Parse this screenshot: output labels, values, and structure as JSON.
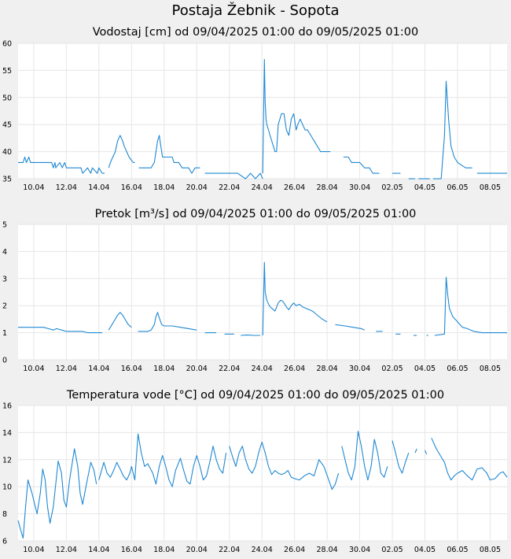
{
  "page_title": "Postaja Žebnik - Sopota",
  "colors": {
    "line": "#1e88d2",
    "grid": "#e6e6e6",
    "plot_bg": "#ffffff",
    "page_bg": "#f0f0f0"
  },
  "chart_data": [
    {
      "type": "line",
      "title": "Vodostaj [cm] od 09/04/2025 01:00 do 09/05/2025 01:00",
      "xlabel": "",
      "ylabel": "",
      "ylim": [
        35,
        60
      ],
      "yticks": [
        35,
        40,
        45,
        50,
        55,
        60
      ],
      "xlim": [
        9.04,
        39.04
      ],
      "xticks": [
        10,
        12,
        14,
        16,
        18,
        20,
        22,
        24,
        26,
        28,
        30,
        32,
        34,
        36,
        38
      ],
      "xtick_labels": [
        "10.04",
        "12.04",
        "14.04",
        "16.04",
        "18.04",
        "20.04",
        "22.04",
        "24.04",
        "26.04",
        "28.04",
        "30.04",
        "02.05",
        "04.05",
        "06.05",
        "08.05"
      ],
      "grid": true,
      "series": [
        {
          "x": [
            9.04,
            9.35,
            9.45,
            9.55,
            9.7,
            9.8,
            9.95,
            10.3,
            10.6,
            10.8,
            11.1,
            11.2,
            11.3,
            11.35,
            11.6,
            11.75,
            11.9,
            12.0,
            12.2,
            12.5,
            12.9,
            13.0,
            13.3,
            13.5,
            13.6,
            13.9,
            14.0,
            14.2,
            14.35
          ],
          "y": [
            38,
            38,
            39,
            38,
            39,
            38,
            38,
            38,
            38,
            38,
            38,
            37,
            38,
            37,
            38,
            37,
            38,
            37,
            37,
            37,
            37,
            36,
            37,
            36,
            37,
            36,
            37,
            36,
            36
          ]
        },
        {
          "x": [
            14.6,
            14.7,
            14.85,
            15.0,
            15.15,
            15.3,
            15.45,
            15.55,
            15.7,
            15.85,
            16.1,
            16.2
          ],
          "y": [
            37,
            38,
            39,
            40,
            42,
            43,
            42,
            41,
            40,
            39,
            38,
            38
          ]
        },
        {
          "x": [
            16.45,
            16.8,
            17.2,
            17.4,
            17.5,
            17.6,
            17.7,
            17.8,
            17.9,
            18.1,
            18.5,
            18.6,
            18.9,
            19.1,
            19.3,
            19.5,
            19.7,
            19.9,
            20.2
          ],
          "y": [
            37,
            37,
            37,
            38,
            40,
            42,
            43,
            41,
            39,
            39,
            39,
            38,
            38,
            37,
            37,
            37,
            36,
            37,
            37
          ]
        },
        {
          "x": [
            20.5,
            21.5,
            22.5,
            23.0,
            23.3,
            23.6,
            23.9,
            24.05
          ],
          "y": [
            36,
            36,
            36,
            35,
            36,
            35,
            36,
            35
          ]
        },
        {
          "x": [
            24.05,
            24.15,
            24.2,
            24.25,
            24.3,
            24.4,
            24.5,
            24.6,
            24.7,
            24.8,
            24.9,
            25.0,
            25.2,
            25.35,
            25.5,
            25.65,
            25.8,
            25.95,
            26.1,
            26.2,
            26.35,
            26.5,
            26.65,
            26.8,
            27.0,
            27.2,
            27.4,
            27.6,
            27.8,
            28.2
          ],
          "y": [
            36,
            57,
            49,
            46,
            45,
            44,
            43,
            42,
            41,
            40,
            40,
            45,
            47,
            47,
            44,
            43,
            46,
            47,
            44,
            45,
            46,
            45,
            44,
            44,
            43,
            42,
            41,
            40,
            40,
            40
          ]
        },
        {
          "x": [
            29.0,
            29.3,
            29.5,
            29.7,
            30.0,
            30.3,
            30.6,
            30.8,
            31.0,
            31.2
          ],
          "y": [
            39,
            39,
            38,
            38,
            38,
            37,
            37,
            36,
            36,
            36
          ]
        },
        {
          "x": [
            32.0,
            32.5
          ],
          "y": [
            36,
            36
          ]
        },
        {
          "x": [
            33.0,
            33.4
          ],
          "y": [
            35,
            35
          ]
        },
        {
          "x": [
            33.6,
            34.3
          ],
          "y": [
            35,
            35
          ]
        },
        {
          "x": [
            34.5,
            35.0
          ],
          "y": [
            35,
            35
          ]
        },
        {
          "x": [
            35.0,
            35.2,
            35.3,
            35.45,
            35.6,
            35.8,
            36.0,
            36.5,
            36.9
          ],
          "y": [
            35,
            43,
            53,
            46,
            41,
            39,
            38,
            37,
            37
          ]
        },
        {
          "x": [
            37.2,
            39.04
          ],
          "y": [
            36,
            36
          ]
        }
      ]
    },
    {
      "type": "line",
      "title": "Pretok [m³/s] od 09/04/2025 01:00 do 09/05/2025 01:00",
      "xlabel": "",
      "ylabel": "",
      "ylim": [
        0,
        5
      ],
      "yticks": [
        0,
        1,
        2,
        3,
        4,
        5
      ],
      "xlim": [
        9.04,
        39.04
      ],
      "xticks": [
        10,
        12,
        14,
        16,
        18,
        20,
        22,
        24,
        26,
        28,
        30,
        32,
        34,
        36,
        38
      ],
      "xtick_labels": [
        "10.04",
        "12.04",
        "14.04",
        "16.04",
        "18.04",
        "20.04",
        "22.04",
        "24.04",
        "26.04",
        "28.04",
        "30.04",
        "02.05",
        "04.05",
        "06.05",
        "08.05"
      ],
      "grid": true,
      "series": [
        {
          "x": [
            9.04,
            9.5,
            10.0,
            10.6,
            10.9,
            11.2,
            11.4,
            11.7,
            12.0,
            12.5,
            13.0,
            13.3,
            13.6,
            13.9,
            14.2
          ],
          "y": [
            1.2,
            1.2,
            1.2,
            1.2,
            1.15,
            1.1,
            1.15,
            1.1,
            1.05,
            1.05,
            1.05,
            1.0,
            1.0,
            1.0,
            1.0
          ]
        },
        {
          "x": [
            14.6,
            14.8,
            15.0,
            15.15,
            15.3,
            15.45,
            15.6,
            15.8,
            16.0
          ],
          "y": [
            1.1,
            1.3,
            1.5,
            1.65,
            1.75,
            1.65,
            1.5,
            1.3,
            1.2
          ]
        },
        {
          "x": [
            16.4,
            17.0,
            17.2,
            17.4,
            17.5,
            17.6,
            17.7,
            17.85,
            18.0,
            18.5,
            19.0,
            19.5,
            20.0
          ],
          "y": [
            1.05,
            1.05,
            1.1,
            1.3,
            1.6,
            1.75,
            1.55,
            1.3,
            1.25,
            1.25,
            1.2,
            1.15,
            1.1
          ]
        },
        {
          "x": [
            20.5,
            21.2
          ],
          "y": [
            1.0,
            1.0
          ]
        },
        {
          "x": [
            21.7,
            22.3
          ],
          "y": [
            0.95,
            0.95
          ]
        },
        {
          "x": [
            22.7,
            23.1,
            23.5,
            23.9
          ],
          "y": [
            0.9,
            0.92,
            0.9,
            0.9
          ]
        },
        {
          "x": [
            24.05,
            24.15,
            24.2,
            24.3,
            24.45,
            24.6,
            24.8,
            25.0,
            25.15,
            25.3,
            25.5,
            25.65,
            25.8,
            25.95,
            26.1,
            26.3,
            26.5,
            26.7,
            26.9,
            27.1,
            27.3,
            27.5,
            27.7,
            28.0
          ],
          "y": [
            0.9,
            3.6,
            2.5,
            2.2,
            2.0,
            1.9,
            1.8,
            2.1,
            2.2,
            2.15,
            1.95,
            1.85,
            2.0,
            2.1,
            2.0,
            2.05,
            1.95,
            1.9,
            1.85,
            1.8,
            1.7,
            1.6,
            1.5,
            1.4
          ]
        },
        {
          "x": [
            28.5,
            29.1,
            29.6,
            30.1,
            30.3
          ],
          "y": [
            1.3,
            1.25,
            1.2,
            1.15,
            1.1
          ]
        },
        {
          "x": [
            31.0,
            31.4
          ],
          "y": [
            1.05,
            1.05
          ]
        },
        {
          "x": [
            32.2,
            32.5
          ],
          "y": [
            0.95,
            0.95
          ]
        },
        {
          "x": [
            33.3,
            33.5
          ],
          "y": [
            0.9,
            0.9
          ]
        },
        {
          "x": [
            34.1,
            34.2
          ],
          "y": [
            0.9,
            0.9
          ]
        },
        {
          "x": [
            34.6,
            35.2,
            35.3,
            35.4,
            35.5,
            35.7,
            36.0,
            36.3,
            36.6,
            37.0,
            37.5,
            38.0,
            39.04
          ],
          "y": [
            0.9,
            0.95,
            3.05,
            2.4,
            1.9,
            1.6,
            1.4,
            1.2,
            1.15,
            1.05,
            1.0,
            1.0,
            1.0
          ]
        }
      ]
    },
    {
      "type": "line",
      "title": "Temperatura vode [°C] od 09/04/2025 01:00 do 09/05/2025 01:00",
      "xlabel": "",
      "ylabel": "",
      "ylim": [
        6,
        16
      ],
      "yticks": [
        6,
        8,
        10,
        12,
        14,
        16
      ],
      "xlim": [
        9.04,
        39.04
      ],
      "xticks": [
        10,
        12,
        14,
        16,
        18,
        20,
        22,
        24,
        26,
        28,
        30,
        32,
        34,
        36,
        38
      ],
      "xtick_labels": [
        "10.04",
        "12.04",
        "14.04",
        "16.04",
        "18.04",
        "20.04",
        "22.04",
        "24.04",
        "26.04",
        "28.04",
        "30.04",
        "02.05",
        "04.05",
        "06.05",
        "08.05"
      ],
      "grid": true,
      "series": [
        {
          "x": [
            9.04,
            9.2,
            9.35,
            9.5,
            9.65,
            9.9,
            10.2,
            10.4,
            10.55,
            10.7,
            10.85,
            11.0,
            11.2,
            11.5,
            11.7,
            11.85,
            12.0,
            12.2,
            12.5,
            12.7,
            12.85,
            13.0,
            13.2,
            13.5,
            13.7,
            13.85
          ],
          "y": [
            7.5,
            6.8,
            6.2,
            8.5,
            10.5,
            9.5,
            8.0,
            9.5,
            11.3,
            10.5,
            8.5,
            7.3,
            8.5,
            11.9,
            11.0,
            9.0,
            8.5,
            10.5,
            12.8,
            11.5,
            9.5,
            8.7,
            10.0,
            11.8,
            11.2,
            10.2
          ]
        },
        {
          "x": [
            14.0,
            14.3,
            14.5,
            14.7,
            14.9,
            15.1,
            15.3,
            15.5,
            15.7,
            15.9,
            16.0,
            16.2,
            16.4,
            16.6,
            16.8,
            17.0,
            17.3,
            17.5,
            17.7,
            17.9,
            18.1,
            18.3,
            18.5,
            18.7,
            19.0,
            19.2,
            19.4,
            19.6,
            19.8,
            20.0,
            20.2,
            20.4,
            20.6,
            20.8,
            21.0,
            21.2,
            21.4,
            21.6,
            21.8
          ],
          "y": [
            10.5,
            11.8,
            11.0,
            10.7,
            11.2,
            11.8,
            11.3,
            10.8,
            10.5,
            11.0,
            11.5,
            10.5,
            13.9,
            12.5,
            11.5,
            11.7,
            11.0,
            10.2,
            11.5,
            12.3,
            11.5,
            10.5,
            10.0,
            11.2,
            12.1,
            11.2,
            10.4,
            10.2,
            11.5,
            12.3,
            11.5,
            10.5,
            10.8,
            11.8,
            13.0,
            12.0,
            11.3,
            11.0,
            12.5
          ]
        },
        {
          "x": [
            22.0,
            22.2,
            22.4,
            22.6,
            22.8,
            23.0,
            23.2,
            23.4,
            23.6,
            23.8,
            24.0,
            24.2,
            24.4,
            24.6,
            24.8,
            25.0,
            25.2,
            25.4,
            25.6,
            25.8,
            26.0,
            26.3,
            26.6,
            26.9,
            27.2,
            27.5,
            27.8,
            28.1,
            28.3,
            28.5,
            28.7
          ],
          "y": [
            13.0,
            12.2,
            11.5,
            12.5,
            13.0,
            12.0,
            11.3,
            11.0,
            11.5,
            12.5,
            13.3,
            12.5,
            11.5,
            10.9,
            11.2,
            11.0,
            10.9,
            11.0,
            11.2,
            10.7,
            10.6,
            10.5,
            10.8,
            11.0,
            10.8,
            12.0,
            11.5,
            10.5,
            9.8,
            10.2,
            11.0
          ]
        },
        {
          "x": [
            28.9,
            29.1,
            29.3,
            29.5,
            29.7,
            29.9,
            30.1,
            30.3,
            30.5,
            30.7,
            30.9,
            31.1,
            31.3,
            31.5,
            31.7
          ],
          "y": [
            13.0,
            12.0,
            11.0,
            10.5,
            11.5,
            14.1,
            13.0,
            11.5,
            10.5,
            11.5,
            13.5,
            12.5,
            11.0,
            10.7,
            11.5
          ]
        },
        {
          "x": [
            32.0,
            32.2,
            32.4,
            32.6,
            32.8,
            33.0
          ],
          "y": [
            13.4,
            12.5,
            11.5,
            11.0,
            11.8,
            12.5
          ]
        },
        {
          "x": [
            33.4,
            33.5
          ],
          "y": [
            12.5,
            12.8
          ]
        },
        {
          "x": [
            34.0,
            34.1
          ],
          "y": [
            12.7,
            12.4
          ]
        },
        {
          "x": [
            34.4,
            34.7,
            35.0,
            35.2,
            35.4,
            35.6,
            35.8,
            36.0,
            36.3,
            36.6,
            36.9,
            37.2,
            37.5,
            37.8,
            38.0,
            38.3,
            38.6,
            38.8,
            39.04
          ],
          "y": [
            13.6,
            12.8,
            12.2,
            11.8,
            11.0,
            10.5,
            10.8,
            11.0,
            11.2,
            10.8,
            10.5,
            11.3,
            11.4,
            11.0,
            10.5,
            10.6,
            11.0,
            11.1,
            10.7
          ]
        }
      ]
    }
  ]
}
